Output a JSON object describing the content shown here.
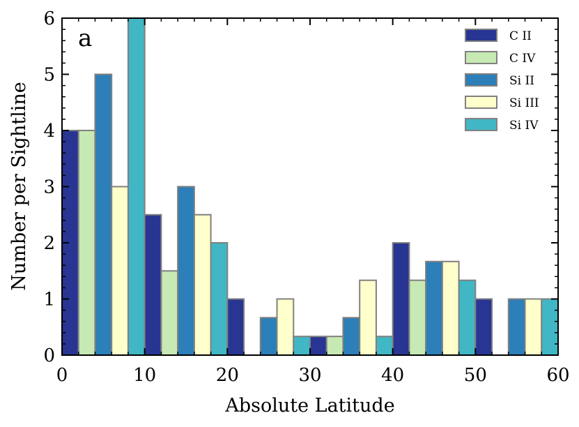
{
  "chart_data": {
    "type": "bar",
    "panel_label": "a",
    "title": "",
    "xlabel": "Absolute Latitude",
    "ylabel": "Number per Sightline",
    "xlim": [
      0,
      60
    ],
    "ylim": [
      0,
      6
    ],
    "xticks": [
      0,
      10,
      20,
      30,
      40,
      50,
      60
    ],
    "yticks": [
      0,
      1,
      2,
      3,
      4,
      5,
      6
    ],
    "bin_edges": [
      0,
      10,
      20,
      30,
      40,
      50,
      60
    ],
    "grid": false,
    "legend_position": "top-right",
    "series": [
      {
        "name": "C II",
        "color": "#283593",
        "values": [
          4,
          2.5,
          1,
          0.333,
          2,
          1
        ]
      },
      {
        "name": "C IV",
        "color": "#c7e9b4",
        "values": [
          4,
          1.5,
          0,
          0.333,
          1.333,
          0
        ]
      },
      {
        "name": "Si II",
        "color": "#2c7fb8",
        "values": [
          5,
          3,
          0.667,
          0.667,
          1.667,
          1
        ]
      },
      {
        "name": "Si III",
        "color": "#ffffcc",
        "values": [
          3,
          2.5,
          1,
          1.333,
          1.667,
          1
        ]
      },
      {
        "name": "Si IV",
        "color": "#41b6c4",
        "values": [
          6,
          2,
          0.333,
          0.333,
          1.333,
          1
        ]
      }
    ]
  }
}
